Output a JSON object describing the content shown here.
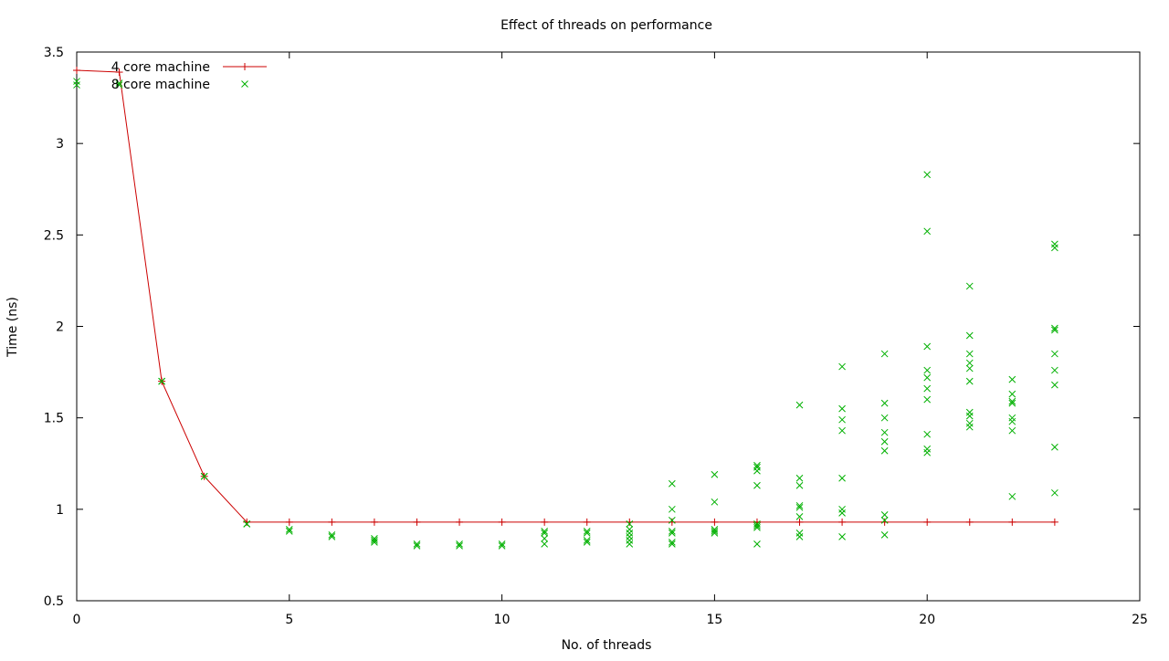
{
  "chart_data": {
    "type": "scatter",
    "title": "Effect of threads on performance",
    "xlabel": "No. of threads",
    "ylabel": "Time (ns)",
    "xlim": [
      0,
      25
    ],
    "ylim": [
      0.5,
      3.5
    ],
    "xticks": [
      0,
      5,
      10,
      15,
      20,
      25
    ],
    "yticks": [
      0.5,
      1,
      1.5,
      2,
      2.5,
      3,
      3.5
    ],
    "legend_position": "top-left",
    "grid": false,
    "series": [
      {
        "name": "4 core machine",
        "style": "linespoints",
        "marker": "plus",
        "color": "#cc0000",
        "x": [
          0,
          1,
          2,
          3,
          4,
          5,
          6,
          7,
          8,
          9,
          10,
          11,
          12,
          13,
          14,
          15,
          16,
          17,
          18,
          19,
          20,
          21,
          22,
          23
        ],
        "y": [
          3.4,
          3.39,
          1.7,
          1.18,
          0.93,
          0.93,
          0.93,
          0.93,
          0.93,
          0.93,
          0.93,
          0.93,
          0.93,
          0.93,
          0.93,
          0.93,
          0.93,
          0.93,
          0.93,
          0.93,
          0.93,
          0.93,
          0.93,
          0.93
        ]
      },
      {
        "name": "8 core machine",
        "style": "points",
        "marker": "cross",
        "color": "#00b000",
        "points": [
          [
            0,
            3.34
          ],
          [
            0,
            3.32
          ],
          [
            1,
            3.33
          ],
          [
            1,
            3.32
          ],
          [
            2,
            1.7
          ],
          [
            2,
            1.7
          ],
          [
            3,
            1.18
          ],
          [
            3,
            1.18
          ],
          [
            4,
            0.92
          ],
          [
            4,
            0.92
          ],
          [
            5,
            0.89
          ],
          [
            5,
            0.88
          ],
          [
            6,
            0.86
          ],
          [
            6,
            0.85
          ],
          [
            7,
            0.84
          ],
          [
            7,
            0.83
          ],
          [
            7,
            0.82
          ],
          [
            8,
            0.81
          ],
          [
            8,
            0.8
          ],
          [
            9,
            0.81
          ],
          [
            9,
            0.8
          ],
          [
            10,
            0.81
          ],
          [
            10,
            0.8
          ],
          [
            11,
            0.88
          ],
          [
            11,
            0.87
          ],
          [
            11,
            0.84
          ],
          [
            11,
            0.81
          ],
          [
            12,
            0.88
          ],
          [
            12,
            0.87
          ],
          [
            12,
            0.83
          ],
          [
            12,
            0.82
          ],
          [
            13,
            0.92
          ],
          [
            13,
            0.89
          ],
          [
            13,
            0.87
          ],
          [
            13,
            0.85
          ],
          [
            13,
            0.83
          ],
          [
            13,
            0.81
          ],
          [
            14,
            1.14
          ],
          [
            14,
            1.0
          ],
          [
            14,
            0.94
          ],
          [
            14,
            0.88
          ],
          [
            14,
            0.87
          ],
          [
            14,
            0.82
          ],
          [
            14,
            0.81
          ],
          [
            15,
            1.19
          ],
          [
            15,
            1.04
          ],
          [
            15,
            0.89
          ],
          [
            15,
            0.88
          ],
          [
            15,
            0.87
          ],
          [
            16,
            1.24
          ],
          [
            16,
            1.23
          ],
          [
            16,
            1.21
          ],
          [
            16,
            1.13
          ],
          [
            16,
            0.92
          ],
          [
            16,
            0.91
          ],
          [
            16,
            0.9
          ],
          [
            16,
            0.81
          ],
          [
            17,
            1.57
          ],
          [
            17,
            1.17
          ],
          [
            17,
            1.13
          ],
          [
            17,
            1.02
          ],
          [
            17,
            1.01
          ],
          [
            17,
            0.96
          ],
          [
            17,
            0.87
          ],
          [
            17,
            0.85
          ],
          [
            18,
            1.78
          ],
          [
            18,
            1.55
          ],
          [
            18,
            1.49
          ],
          [
            18,
            1.43
          ],
          [
            18,
            1.17
          ],
          [
            18,
            1.0
          ],
          [
            18,
            0.98
          ],
          [
            18,
            0.85
          ],
          [
            19,
            1.85
          ],
          [
            19,
            1.58
          ],
          [
            19,
            1.5
          ],
          [
            19,
            1.42
          ],
          [
            19,
            1.37
          ],
          [
            19,
            1.32
          ],
          [
            19,
            0.97
          ],
          [
            19,
            0.94
          ],
          [
            19,
            0.86
          ],
          [
            20,
            2.83
          ],
          [
            20,
            2.52
          ],
          [
            20,
            1.89
          ],
          [
            20,
            1.76
          ],
          [
            20,
            1.72
          ],
          [
            20,
            1.66
          ],
          [
            20,
            1.6
          ],
          [
            20,
            1.41
          ],
          [
            20,
            1.33
          ],
          [
            20,
            1.31
          ],
          [
            21,
            2.22
          ],
          [
            21,
            1.95
          ],
          [
            21,
            1.85
          ],
          [
            21,
            1.8
          ],
          [
            21,
            1.77
          ],
          [
            21,
            1.7
          ],
          [
            21,
            1.53
          ],
          [
            21,
            1.51
          ],
          [
            21,
            1.47
          ],
          [
            21,
            1.45
          ],
          [
            22,
            1.71
          ],
          [
            22,
            1.63
          ],
          [
            22,
            1.59
          ],
          [
            22,
            1.58
          ],
          [
            22,
            1.5
          ],
          [
            22,
            1.48
          ],
          [
            22,
            1.43
          ],
          [
            22,
            1.07
          ],
          [
            23,
            2.45
          ],
          [
            23,
            2.43
          ],
          [
            23,
            1.99
          ],
          [
            23,
            1.98
          ],
          [
            23,
            1.85
          ],
          [
            23,
            1.76
          ],
          [
            23,
            1.68
          ],
          [
            23,
            1.34
          ],
          [
            23,
            1.09
          ]
        ]
      }
    ]
  }
}
